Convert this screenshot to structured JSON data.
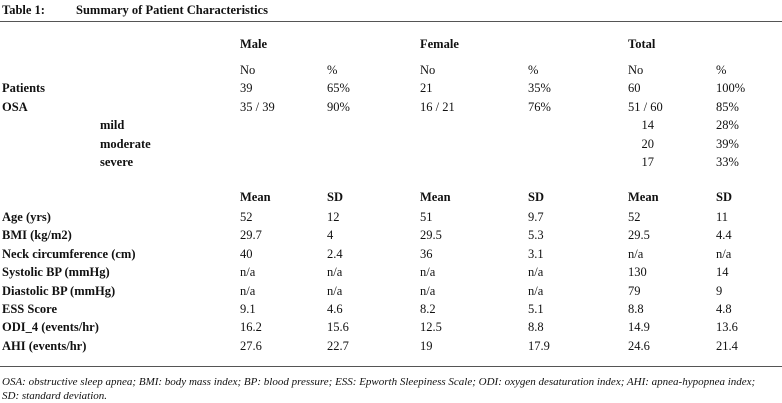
{
  "title": {
    "label": "Table 1:",
    "text": "Summary of Patient Characteristics"
  },
  "groups": [
    "Male",
    "Female",
    "Total"
  ],
  "count_headers": [
    "No",
    "%",
    "No",
    "%",
    "No",
    "%"
  ],
  "count_rows": [
    {
      "label": "Patients",
      "cells": [
        "39",
        "65%",
        "21",
        "35%",
        "60",
        "100%"
      ]
    },
    {
      "label": "OSA",
      "cells": [
        "35 / 39",
        "90%",
        "16 / 21",
        "76%",
        "51 / 60",
        "85%"
      ]
    }
  ],
  "severity_rows": [
    {
      "label": "mild",
      "cells": [
        "14",
        "28%"
      ]
    },
    {
      "label": "moderate",
      "cells": [
        "20",
        "39%"
      ]
    },
    {
      "label": "severe",
      "cells": [
        "17",
        "33%"
      ]
    }
  ],
  "stat_headers": [
    "Mean",
    "SD",
    "Mean",
    "SD",
    "Mean",
    "SD"
  ],
  "stat_rows": [
    {
      "label": "Age (yrs)",
      "cells": [
        "52",
        "12",
        "51",
        "9.7",
        "52",
        "11"
      ]
    },
    {
      "label": "BMI (kg/m2)",
      "cells": [
        "29.7",
        "4",
        "29.5",
        "5.3",
        "29.5",
        "4.4"
      ]
    },
    {
      "label": "Neck circumference (cm)",
      "cells": [
        "40",
        "2.4",
        "36",
        "3.1",
        "n/a",
        "n/a"
      ]
    },
    {
      "label": "Systolic BP (mmHg)",
      "cells": [
        "n/a",
        "n/a",
        "n/a",
        "n/a",
        "130",
        "14"
      ]
    },
    {
      "label": "Diastolic BP (mmHg)",
      "cells": [
        "n/a",
        "n/a",
        "n/a",
        "n/a",
        "79",
        "9"
      ]
    },
    {
      "label": "ESS Score",
      "cells": [
        "9.1",
        "4.6",
        "8.2",
        "5.1",
        "8.8",
        "4.8"
      ]
    },
    {
      "label": "ODI_4 (events/hr)",
      "cells": [
        "16.2",
        "15.6",
        "12.5",
        "8.8",
        "14.9",
        "13.6"
      ]
    },
    {
      "label": "AHI (events/hr)",
      "cells": [
        "27.6",
        "22.7",
        "19",
        "17.9",
        "24.6",
        "21.4"
      ]
    }
  ],
  "footnote": "OSA: obstructive sleep apnea; BMI: body mass index; BP: blood pressure; ESS: Epworth Sleepiness Scale; ODI: oxygen desaturation index; AHI: apnea-hypopnea index; SD: standard deviation."
}
